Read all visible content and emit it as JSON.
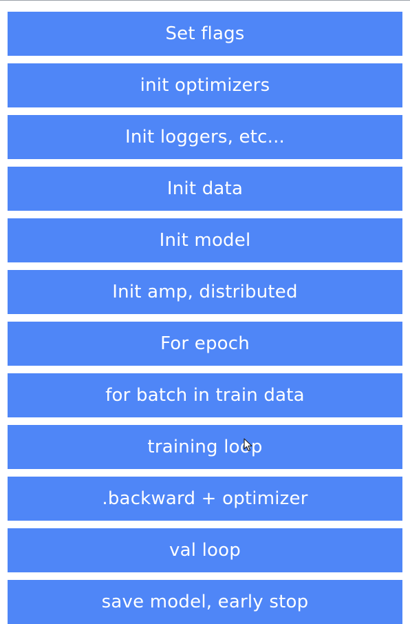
{
  "steps": [
    "Set flags",
    "init optimizers",
    "Init loggers, etc...",
    "Init data",
    "Init model",
    "Init amp, distributed",
    "For epoch",
    "for batch in train data",
    "training loop",
    ".backward + optimizer",
    "val loop",
    "save model, early stop"
  ],
  "colors": {
    "box_fill": "#4f86f7",
    "box_text": "#ffffff",
    "background": "#ffffff"
  },
  "cursor": {
    "icon": "mouse-pointer-icon"
  }
}
